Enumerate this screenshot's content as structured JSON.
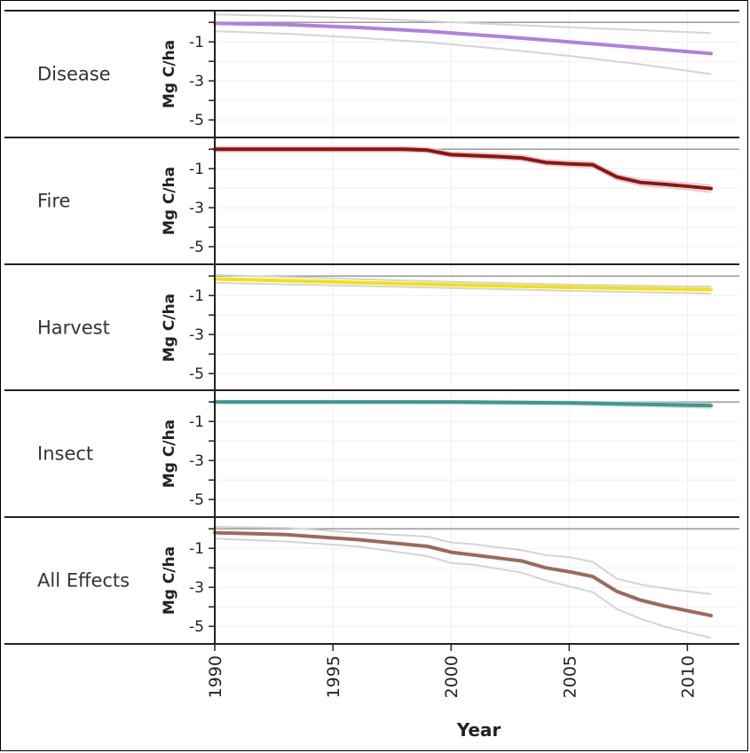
{
  "chart_data": {
    "type": "line",
    "xlabel": "Year",
    "ylabel": "Mg C/ha",
    "xlim": [
      1990,
      2012.2
    ],
    "ylim": [
      -5.9,
      0.6
    ],
    "xticks": [
      1990,
      1995,
      2000,
      2005,
      2010
    ],
    "yticks": [
      -1,
      -3,
      -5
    ],
    "reference_line": 0,
    "grid": true,
    "panels": [
      {
        "name": "Disease",
        "color": "#b07fe0",
        "x": [
          1990,
          1993,
          1996,
          1999,
          2002,
          2005,
          2008,
          2011
        ],
        "y": [
          -0.05,
          -0.12,
          -0.26,
          -0.46,
          -0.72,
          -1.0,
          -1.3,
          -1.6
        ],
        "upper": [
          0.4,
          0.33,
          0.22,
          0.06,
          -0.1,
          -0.25,
          -0.4,
          -0.55
        ],
        "lower": [
          -0.45,
          -0.58,
          -0.78,
          -1.02,
          -1.35,
          -1.72,
          -2.15,
          -2.65
        ]
      },
      {
        "name": "Fire",
        "color": "#9b0f0f",
        "x": [
          1990,
          1993,
          1996,
          1998,
          1999,
          2000,
          2001,
          2002,
          2003,
          2004,
          2005,
          2006,
          2007,
          2008,
          2009,
          2010,
          2011
        ],
        "y": [
          0.0,
          0.0,
          0.0,
          0.0,
          -0.05,
          -0.28,
          -0.33,
          -0.38,
          -0.45,
          -0.68,
          -0.75,
          -0.8,
          -1.42,
          -1.7,
          -1.8,
          -1.9,
          -2.02
        ],
        "upper": [
          0.12,
          0.12,
          0.12,
          0.12,
          0.07,
          -0.16,
          -0.2,
          -0.25,
          -0.32,
          -0.55,
          -0.62,
          -0.67,
          -1.28,
          -1.55,
          -1.65,
          -1.74,
          -1.85
        ],
        "lower": [
          -0.12,
          -0.12,
          -0.12,
          -0.12,
          -0.17,
          -0.4,
          -0.46,
          -0.51,
          -0.58,
          -0.81,
          -0.88,
          -0.93,
          -1.56,
          -1.85,
          -1.96,
          -2.07,
          -2.2
        ]
      },
      {
        "name": "Harvest",
        "color": "#f2e20c",
        "x": [
          1990,
          1995,
          2000,
          2005,
          2011
        ],
        "y": [
          -0.15,
          -0.3,
          -0.45,
          -0.58,
          -0.7
        ],
        "upper": [
          0.05,
          -0.12,
          -0.3,
          -0.44,
          -0.55
        ],
        "lower": [
          -0.35,
          -0.48,
          -0.62,
          -0.76,
          -0.9
        ]
      },
      {
        "name": "Insect",
        "color": "#3a9a90",
        "x": [
          1990,
          1995,
          2000,
          2005,
          2011
        ],
        "y": [
          0.0,
          0.0,
          0.0,
          -0.05,
          -0.18
        ],
        "upper": [
          0.06,
          0.06,
          0.06,
          0.02,
          -0.08
        ],
        "lower": [
          -0.06,
          -0.06,
          -0.07,
          -0.13,
          -0.3
        ]
      },
      {
        "name": "All Effects",
        "color": "#9c6a58",
        "x": [
          1990,
          1993,
          1996,
          1999,
          2000,
          2001,
          2002,
          2003,
          2004,
          2005,
          2006,
          2007,
          2008,
          2009,
          2010,
          2011
        ],
        "y": [
          -0.2,
          -0.3,
          -0.55,
          -0.9,
          -1.2,
          -1.35,
          -1.5,
          -1.65,
          -2.0,
          -2.2,
          -2.45,
          -3.2,
          -3.65,
          -3.95,
          -4.2,
          -4.45
        ],
        "upper": [
          0.1,
          0.05,
          -0.2,
          -0.4,
          -0.7,
          -0.8,
          -0.95,
          -1.1,
          -1.35,
          -1.45,
          -1.7,
          -2.55,
          -2.85,
          -3.05,
          -3.2,
          -3.35
        ],
        "lower": [
          -0.5,
          -0.65,
          -0.9,
          -1.4,
          -1.75,
          -1.85,
          -2.05,
          -2.25,
          -2.65,
          -2.95,
          -3.25,
          -4.1,
          -4.6,
          -5.0,
          -5.3,
          -5.6
        ]
      }
    ]
  }
}
